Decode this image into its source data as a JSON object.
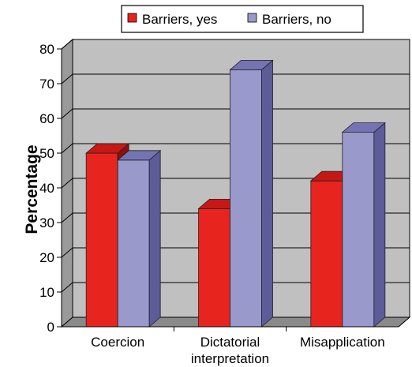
{
  "chart_data": {
    "type": "bar",
    "ylabel": "Percentage",
    "ylim": [
      0,
      80
    ],
    "yticks": [
      0,
      10,
      20,
      30,
      40,
      50,
      60,
      70,
      80
    ],
    "categories": [
      [
        "Coercion"
      ],
      [
        "Dictatorial",
        "interpretation"
      ],
      [
        "Misapplication"
      ]
    ],
    "series": [
      {
        "name": "Barriers, yes",
        "values": [
          50,
          34,
          42
        ],
        "color": "#e8241f",
        "side_color": "#8e0f0d",
        "top_color": "#c61814"
      },
      {
        "name": "Barriers, no",
        "values": [
          48,
          74,
          56
        ],
        "color": "#9999cc",
        "side_color": "#5c5c99",
        "top_color": "#7474b4"
      }
    ],
    "legend_position": "top",
    "grid": true,
    "wall_color": "#c0c0c0",
    "floor_color": "#8a8a8a"
  }
}
